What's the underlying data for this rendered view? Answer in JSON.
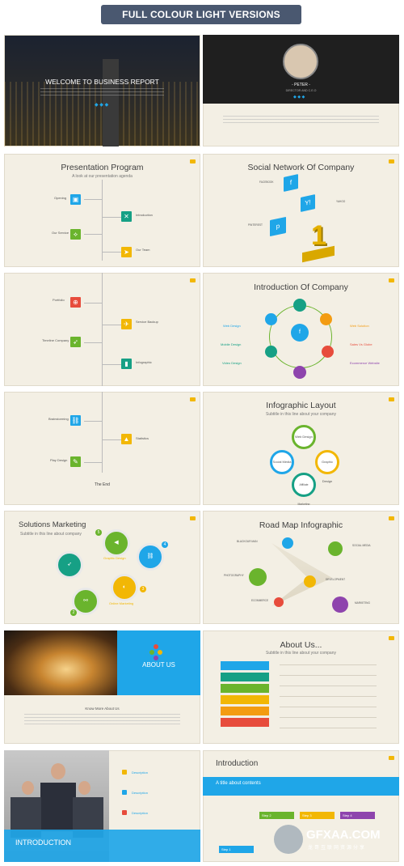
{
  "header": {
    "title": "FULL COLOUR LIGHT VERSIONS"
  },
  "colors": {
    "cream": "#f3efe4",
    "blue": "#1fa6e8",
    "green": "#6ab42d",
    "orange": "#f39c12",
    "red": "#e74c3c",
    "purple": "#8e44ad",
    "yellow": "#f2b705"
  },
  "slides": {
    "s1": {
      "title": "WELCOME TO BUSINESS REPORT"
    },
    "s2": {
      "name": "- PETER -",
      "role": "DIRECTOR  AND C.E.O"
    },
    "s3": {
      "title": "Presentation Program",
      "subtitle": "A look at our presentation agenda",
      "items": [
        "Opening",
        "Introduction",
        "Our Service",
        "Our Team"
      ]
    },
    "s4": {
      "title": "Social Network Of Company",
      "items": [
        "FACEBOOK",
        "YAHOO",
        "PINTEREST"
      ]
    },
    "s5": {
      "items": [
        "Portfolio",
        "Service Backup",
        "Timeline Company",
        "Infographic"
      ]
    },
    "s6": {
      "title": "Introduction Of Company",
      "left": [
        "Web Design",
        "Mobile Design",
        "Video Design"
      ],
      "right": [
        "Web Solution",
        "Sales Vs Globe",
        "Ecommerce Website"
      ]
    },
    "s7": {
      "items": [
        "Brainstorming",
        "Statistics",
        "Play Design",
        "The End"
      ]
    },
    "s8": {
      "title": "Infographic Layout",
      "subtitle": "Subtitle in this line about your company",
      "circles": [
        "Web Design",
        "Social Media",
        "Graphic Design",
        "Affiliate Marketing"
      ]
    },
    "s9": {
      "title": "Solutions Marketing",
      "subtitle": "Subtitle in this line about company",
      "numbers": [
        "5",
        "4",
        "3",
        "2",
        "1"
      ],
      "labels": [
        "Graphic Design",
        "Online Marketing"
      ]
    },
    "s10": {
      "title": "Road Map Infographic",
      "items": [
        "BLACKOUR MAN",
        "SOCIAL MEDIA",
        "PHOTOGRAPHY",
        "DEVELOPMENT",
        "ECOMMERCE",
        "MARKETING"
      ]
    },
    "s11": {
      "title": "ABOUT US",
      "caption": "Know More About Us"
    },
    "s12": {
      "title": "About Us...",
      "subtitle": "Subtitle in this line about your company"
    },
    "s13": {
      "banner": "INTRODUCTION",
      "items": [
        "Description",
        "Description",
        "Description"
      ]
    },
    "s14": {
      "title": "Introduction",
      "banner": "A title about contents",
      "steps": [
        "Step 1",
        "Step 2",
        "Step 3",
        "Step 4"
      ]
    }
  },
  "watermark": {
    "logo": "GFXAA.COM",
    "sub": "龙哥互联网资源分享"
  }
}
